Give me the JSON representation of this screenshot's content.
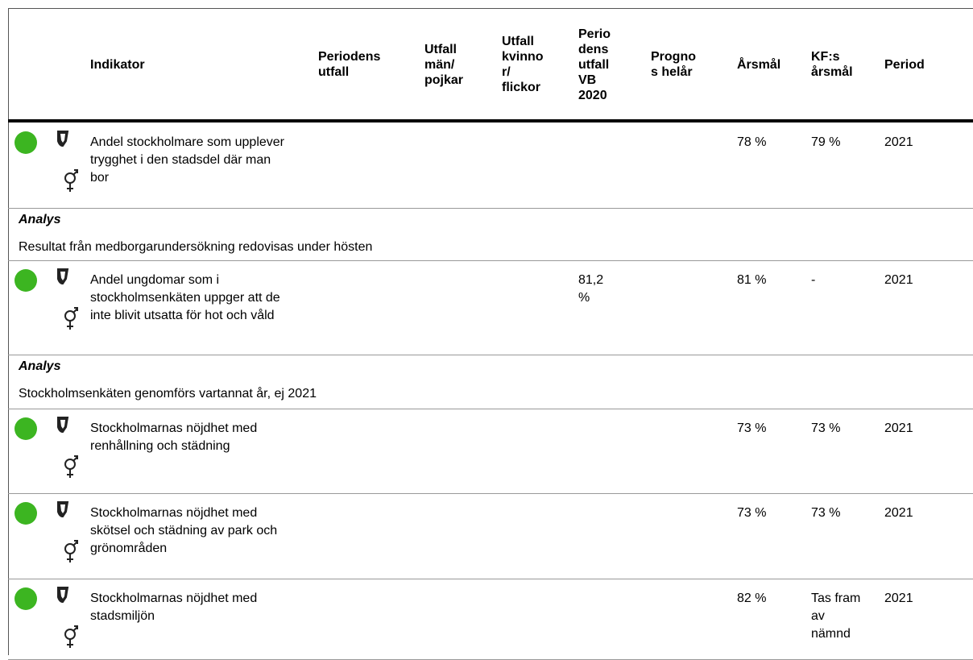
{
  "table": {
    "headers": [
      "Indikator",
      "Periodens utfall",
      "Utfall män/ pojkar",
      "Utfall kvinnor/ flickor",
      "Periodens utfall VB 2020",
      "Prognos helår",
      "Årsmål",
      "KF:s årsmål",
      "Period"
    ],
    "rows": [
      {
        "indicator": "Andel stockholmare som upplever trygghet i den stadsdel där man bor",
        "arsmal": "78 %",
        "kf_arsmal": "79 %",
        "period": "2021",
        "analysis_title": "Analys",
        "analysis": "Resultat från medborgarundersökning redovisas under hösten"
      },
      {
        "indicator": "Andel ungdomar som i stockholmsenkäten uppger att de inte blivit utsatta för hot och våld",
        "vb2020": "81,2 %",
        "arsmal": "81 %",
        "kf_arsmal": "-",
        "period": "2021",
        "analysis_title": "Analys",
        "analysis": "Stockholmsenkäten genomförs vartannat år, ej 2021"
      },
      {
        "indicator": "Stockholmarnas nöjdhet med renhållning och städning",
        "arsmal": "73 %",
        "kf_arsmal": "73 %",
        "period": "2021"
      },
      {
        "indicator": "Stockholmarnas nöjdhet med skötsel och städning av park och grönområden",
        "arsmal": "73 %",
        "kf_arsmal": "73 %",
        "period": "2021"
      },
      {
        "indicator": "Stockholmarnas nöjdhet med stadsmiljön",
        "arsmal": "82 %",
        "kf_arsmal": "Tas fram av nämnd",
        "period": "2021"
      }
    ]
  }
}
